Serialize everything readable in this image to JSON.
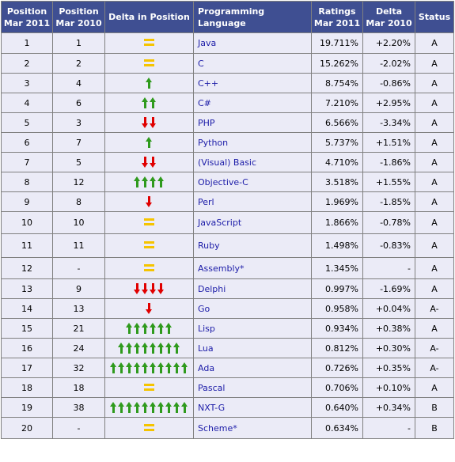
{
  "headers": {
    "pos2011": [
      "Position",
      "Mar 2011"
    ],
    "pos2010": [
      "Position",
      "Mar 2010"
    ],
    "delta_pos": "Delta in Position",
    "language": "Programming Language",
    "ratings": [
      "Ratings",
      "Mar 2011"
    ],
    "delta": [
      "Delta",
      "Mar 2010"
    ],
    "status": "Status"
  },
  "rows": [
    {
      "pos2011": "1",
      "pos2010": "1",
      "delta_pos": "same",
      "delta_count": 0,
      "language": "Java",
      "rating": "19.711%",
      "delta": "+2.20%",
      "status": "A"
    },
    {
      "pos2011": "2",
      "pos2010": "2",
      "delta_pos": "same",
      "delta_count": 0,
      "language": "C",
      "rating": "15.262%",
      "delta": "-2.02%",
      "status": "A"
    },
    {
      "pos2011": "3",
      "pos2010": "4",
      "delta_pos": "up",
      "delta_count": 1,
      "language": "C++",
      "rating": "8.754%",
      "delta": "-0.86%",
      "status": "A"
    },
    {
      "pos2011": "4",
      "pos2010": "6",
      "delta_pos": "up",
      "delta_count": 2,
      "language": "C#",
      "rating": "7.210%",
      "delta": "+2.95%",
      "status": "A"
    },
    {
      "pos2011": "5",
      "pos2010": "3",
      "delta_pos": "down",
      "delta_count": 2,
      "language": "PHP",
      "rating": "6.566%",
      "delta": "-3.34%",
      "status": "A"
    },
    {
      "pos2011": "6",
      "pos2010": "7",
      "delta_pos": "up",
      "delta_count": 1,
      "language": "Python",
      "rating": "5.737%",
      "delta": "+1.51%",
      "status": "A"
    },
    {
      "pos2011": "7",
      "pos2010": "5",
      "delta_pos": "down",
      "delta_count": 2,
      "language": "(Visual) Basic",
      "rating": "4.710%",
      "delta": "-1.86%",
      "status": "A"
    },
    {
      "pos2011": "8",
      "pos2010": "12",
      "delta_pos": "up",
      "delta_count": 4,
      "language": "Objective-C",
      "rating": "3.518%",
      "delta": "+1.55%",
      "status": "A"
    },
    {
      "pos2011": "9",
      "pos2010": "8",
      "delta_pos": "down",
      "delta_count": 1,
      "language": "Perl",
      "rating": "1.969%",
      "delta": "-1.85%",
      "status": "A"
    },
    {
      "pos2011": "10",
      "pos2010": "10",
      "delta_pos": "same",
      "delta_count": 0,
      "language": "JavaScript",
      "rating": "1.866%",
      "delta": "-0.78%",
      "status": "A"
    },
    {
      "pos2011": "11",
      "pos2010": "11",
      "delta_pos": "same",
      "delta_count": 0,
      "language": "Ruby",
      "rating": "1.498%",
      "delta": "-0.83%",
      "status": "A"
    },
    {
      "pos2011": "12",
      "pos2010": "-",
      "delta_pos": "same",
      "delta_count": 0,
      "language": "Assembly*",
      "rating": "1.345%",
      "delta": "-",
      "status": "A"
    },
    {
      "pos2011": "13",
      "pos2010": "9",
      "delta_pos": "down",
      "delta_count": 4,
      "language": "Delphi",
      "rating": "0.997%",
      "delta": "-1.69%",
      "status": "A"
    },
    {
      "pos2011": "14",
      "pos2010": "13",
      "delta_pos": "down",
      "delta_count": 1,
      "language": "Go",
      "rating": "0.958%",
      "delta": "+0.04%",
      "status": "A-"
    },
    {
      "pos2011": "15",
      "pos2010": "21",
      "delta_pos": "up",
      "delta_count": 6,
      "language": "Lisp",
      "rating": "0.934%",
      "delta": "+0.38%",
      "status": "A"
    },
    {
      "pos2011": "16",
      "pos2010": "24",
      "delta_pos": "up",
      "delta_count": 8,
      "language": "Lua",
      "rating": "0.812%",
      "delta": "+0.30%",
      "status": "A-"
    },
    {
      "pos2011": "17",
      "pos2010": "32",
      "delta_pos": "up",
      "delta_count": 10,
      "language": "Ada",
      "rating": "0.726%",
      "delta": "+0.35%",
      "status": "A-"
    },
    {
      "pos2011": "18",
      "pos2010": "18",
      "delta_pos": "same",
      "delta_count": 0,
      "language": "Pascal",
      "rating": "0.706%",
      "delta": "+0.10%",
      "status": "A"
    },
    {
      "pos2011": "19",
      "pos2010": "38",
      "delta_pos": "up",
      "delta_count": 10,
      "language": "NXT-G",
      "rating": "0.640%",
      "delta": "+0.34%",
      "status": "B"
    },
    {
      "pos2011": "20",
      "pos2010": "-",
      "delta_pos": "same",
      "delta_count": 0,
      "language": "Scheme*",
      "rating": "0.634%",
      "delta": "-",
      "status": "B"
    }
  ],
  "colors": {
    "header_bg": "#3f4f92",
    "cell_bg": "#ebebf7",
    "link": "#1c1ca8",
    "up": "#2f9a1d",
    "down": "#e00000",
    "same": "#f5c400"
  },
  "icons": {
    "up": "up-arrow-icon",
    "down": "down-arrow-icon",
    "same": "equal-sign-icon"
  }
}
